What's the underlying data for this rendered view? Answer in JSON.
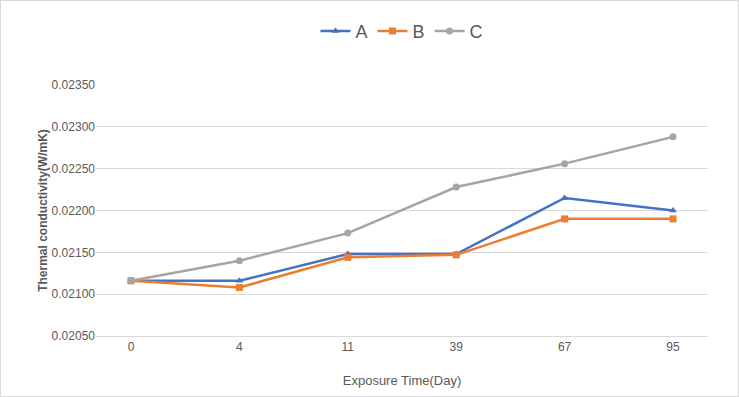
{
  "chart_data": {
    "type": "line",
    "x_label": "Exposure Time(Day)",
    "y_label": "Thermal conductivity(W/mK)",
    "categories": [
      "0",
      "4",
      "11",
      "39",
      "67",
      "95"
    ],
    "series": [
      {
        "name": "A",
        "color": "#4472c4",
        "marker": "triangle-up",
        "line_style": "solid",
        "values": [
          0.02116,
          0.02116,
          0.02148,
          0.02148,
          0.02215,
          0.022
        ]
      },
      {
        "name": "B",
        "color": "#ed7d31",
        "marker": "square",
        "line_style": "solid",
        "values": [
          0.02116,
          0.02108,
          0.02144,
          0.02147,
          0.0219,
          0.0219
        ]
      },
      {
        "name": "C",
        "color": "#a5a5a5",
        "marker": "circle",
        "line_style": "solid",
        "values": [
          0.02116,
          0.0214,
          0.02173,
          0.02228,
          0.02256,
          0.02288
        ]
      }
    ],
    "ylim": [
      0.0205,
      0.0235
    ],
    "yticks": [
      {
        "value": 0.0205,
        "label": "0.02050"
      },
      {
        "value": 0.021,
        "label": "0.02100"
      },
      {
        "value": 0.0215,
        "label": "0.02150"
      },
      {
        "value": 0.022,
        "label": "0.02200"
      },
      {
        "value": 0.0225,
        "label": "0.02250"
      },
      {
        "value": 0.023,
        "label": "0.02300"
      },
      {
        "value": 0.0235,
        "label": "0.02350"
      }
    ],
    "grid": true,
    "legend": "top"
  }
}
